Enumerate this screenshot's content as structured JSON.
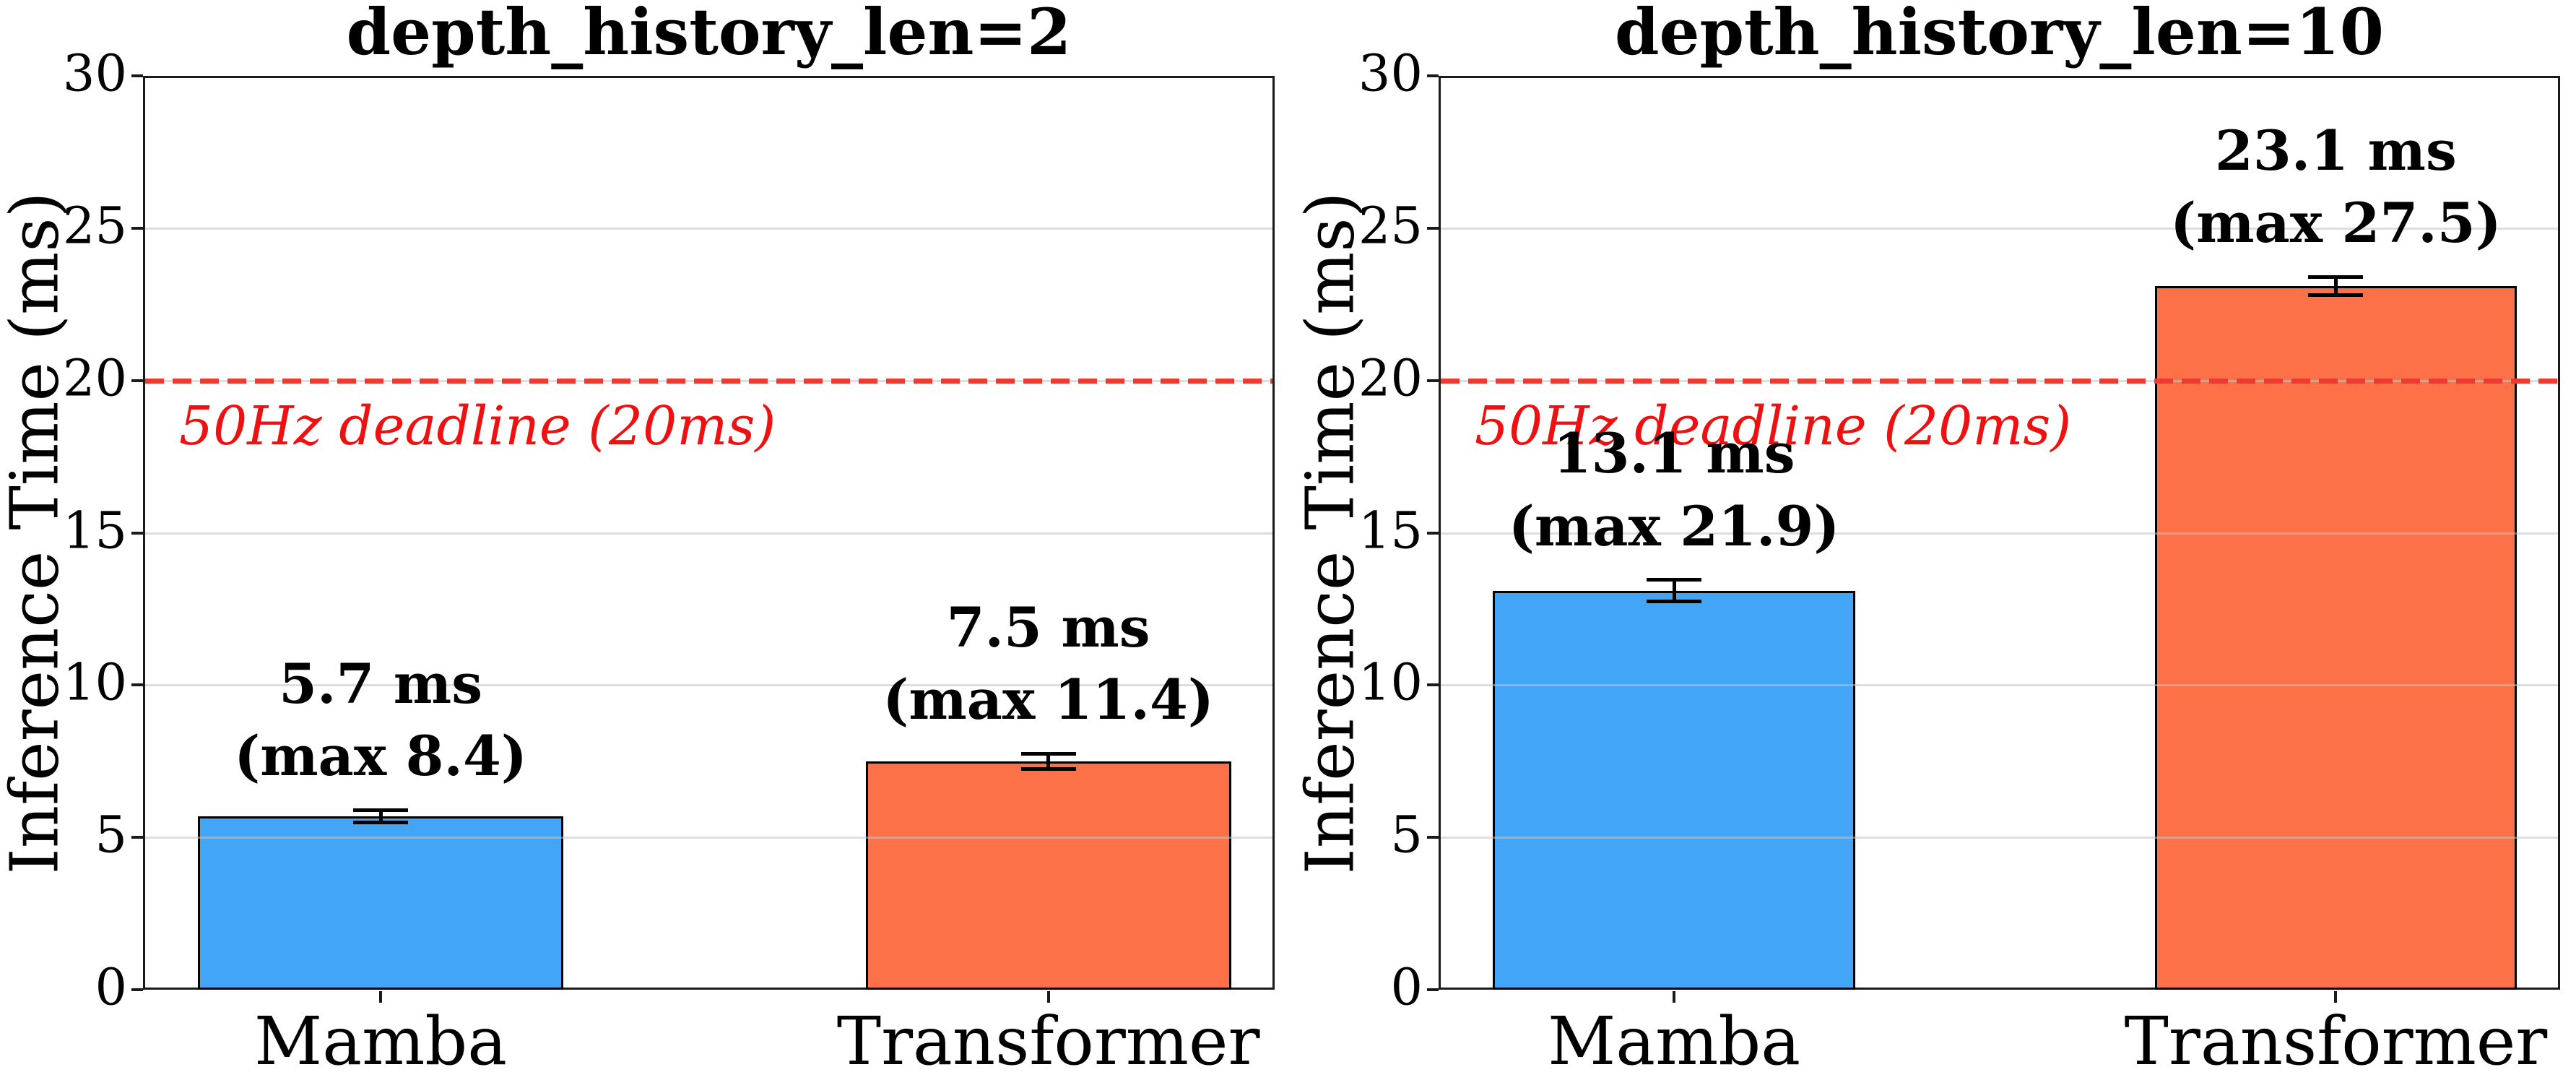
{
  "chart_data": [
    {
      "type": "bar",
      "title": "depth_history_len=2",
      "ylabel": "Inference Time (ms)",
      "xlabel": "",
      "categories": [
        "Mamba",
        "Transformer"
      ],
      "values": [
        5.7,
        7.5
      ],
      "errors": [
        0.2,
        0.25
      ],
      "max_values": [
        8.4,
        11.4
      ],
      "bar_labels": [
        [
          "5.7 ms",
          "(max 8.4)"
        ],
        [
          "7.5 ms",
          "(max 11.4)"
        ]
      ],
      "bar_colors": [
        "#42a5f5",
        "#fd7148"
      ],
      "bar_edge_color": "#000000",
      "ylim": [
        0,
        30
      ],
      "yticks": [
        0,
        5,
        10,
        15,
        20,
        25,
        30
      ],
      "grid": true,
      "legend": "none",
      "deadline": {
        "value": 20,
        "label": "50Hz deadline (20ms)",
        "line_color": "#ee3b32",
        "text_color": "#ee1111",
        "line_style": "dashed"
      }
    },
    {
      "type": "bar",
      "title": "depth_history_len=10",
      "ylabel": "Inference Time (ms)",
      "xlabel": "",
      "categories": [
        "Mamba",
        "Transformer"
      ],
      "values": [
        13.1,
        23.1
      ],
      "errors": [
        0.35,
        0.3
      ],
      "max_values": [
        21.9,
        27.5
      ],
      "bar_labels": [
        [
          "13.1 ms",
          "(max 21.9)"
        ],
        [
          "23.1 ms",
          "(max 27.5)"
        ]
      ],
      "bar_colors": [
        "#42a5f5",
        "#fd7148"
      ],
      "bar_edge_color": "#000000",
      "ylim": [
        0,
        30
      ],
      "yticks": [
        0,
        5,
        10,
        15,
        20,
        25,
        30
      ],
      "grid": true,
      "legend": "none",
      "deadline": {
        "value": 20,
        "label": "50Hz deadline (20ms)",
        "line_color": "#ee3b32",
        "text_color": "#ee1111",
        "line_style": "dashed"
      }
    }
  ]
}
